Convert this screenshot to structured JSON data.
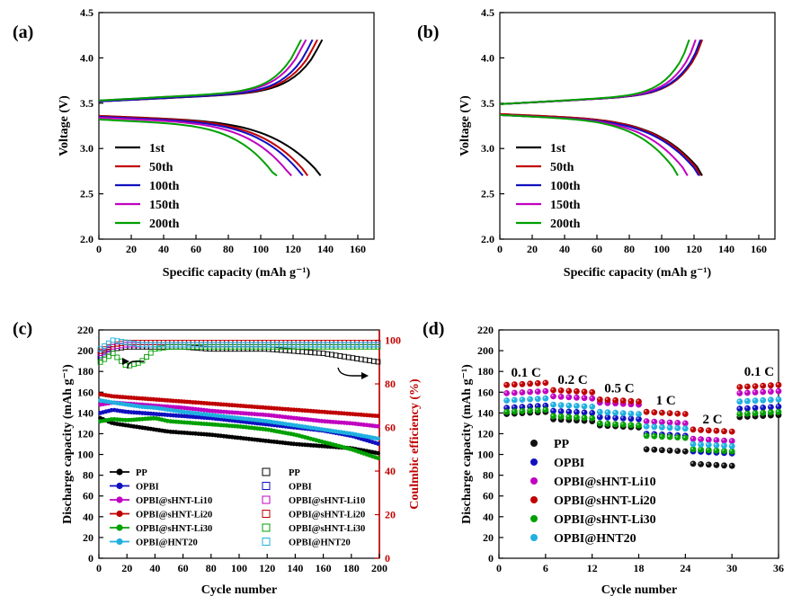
{
  "chart_data": [
    {
      "panel_label": "(a)",
      "type": "line",
      "xlabel": "Specific capacity (mAh g⁻¹)",
      "ylabel": "Voltage (V)",
      "xlim": [
        0,
        170
      ],
      "ylim": [
        2.0,
        4.5
      ],
      "xticks": [
        "0",
        "20",
        "40",
        "60",
        "80",
        "100",
        "120",
        "140",
        "160"
      ],
      "yticks": [
        "2.0",
        "2.5",
        "3.0",
        "3.5",
        "4.0",
        "4.5"
      ],
      "legend_position": "lower-left",
      "series": [
        {
          "name": "1st",
          "color": "#000000",
          "charge_start_voltage": 3.52,
          "charge_capacity": 138,
          "discharge_start_voltage": 3.36,
          "discharge_capacity": 137
        },
        {
          "name": "50th",
          "color": "#c00000",
          "charge_start_voltage": 3.52,
          "charge_capacity": 135,
          "discharge_start_voltage": 3.36,
          "discharge_capacity": 129
        },
        {
          "name": "100th",
          "color": "#1010c0",
          "charge_start_voltage": 3.52,
          "charge_capacity": 132,
          "discharge_start_voltage": 3.35,
          "discharge_capacity": 126
        },
        {
          "name": "150th",
          "color": "#c000c0",
          "charge_start_voltage": 3.53,
          "charge_capacity": 128,
          "discharge_start_voltage": 3.34,
          "discharge_capacity": 119
        },
        {
          "name": "200th",
          "color": "#00a000",
          "charge_start_voltage": 3.53,
          "charge_capacity": 125,
          "discharge_start_voltage": 3.32,
          "discharge_capacity": 110
        }
      ],
      "voltage_cutoffs": [
        2.7,
        4.2
      ]
    },
    {
      "panel_label": "(b)",
      "type": "line",
      "xlabel": "Specific capacity (mAh g⁻¹)",
      "ylabel": "Voltage (V)",
      "xlim": [
        0,
        170
      ],
      "ylim": [
        2.0,
        4.5
      ],
      "xticks": [
        "0",
        "20",
        "40",
        "60",
        "80",
        "100",
        "120",
        "140",
        "160"
      ],
      "yticks": [
        "2.0",
        "2.5",
        "3.0",
        "3.5",
        "4.0",
        "4.5"
      ],
      "legend_position": "lower-left",
      "series": [
        {
          "name": "1st",
          "color": "#000000",
          "charge_start_voltage": 3.49,
          "charge_capacity": 125,
          "discharge_start_voltage": 3.38,
          "discharge_capacity": 125
        },
        {
          "name": "50th",
          "color": "#c00000",
          "charge_start_voltage": 3.49,
          "charge_capacity": 125,
          "discharge_start_voltage": 3.38,
          "discharge_capacity": 124
        },
        {
          "name": "100th",
          "color": "#1010c0",
          "charge_start_voltage": 3.49,
          "charge_capacity": 124,
          "discharge_start_voltage": 3.37,
          "discharge_capacity": 123
        },
        {
          "name": "150th",
          "color": "#c000c0",
          "charge_start_voltage": 3.49,
          "charge_capacity": 121,
          "discharge_start_voltage": 3.37,
          "discharge_capacity": 116
        },
        {
          "name": "200th",
          "color": "#00a000",
          "charge_start_voltage": 3.49,
          "charge_capacity": 117,
          "discharge_start_voltage": 3.37,
          "discharge_capacity": 110
        }
      ],
      "voltage_cutoffs": [
        2.7,
        4.2
      ]
    },
    {
      "panel_label": "(c)",
      "type": "scatter",
      "xlabel": "Cycle number",
      "ylabel": "Discharge capacity (mAh g⁻¹)",
      "ylabel_right": "Coulmbic efficiency (%)",
      "xlim": [
        0,
        200
      ],
      "ylim": [
        0,
        220
      ],
      "ylim_right": [
        0,
        104.76
      ],
      "xticks": [
        "0",
        "20",
        "40",
        "60",
        "80",
        "100",
        "120",
        "140",
        "160",
        "180",
        "200"
      ],
      "yticks": [
        "0",
        "20",
        "40",
        "60",
        "80",
        "100",
        "120",
        "140",
        "160",
        "180",
        "200",
        "220"
      ],
      "yticks_right": [
        "0",
        "20",
        "40",
        "60",
        "80",
        "100"
      ],
      "right_axis_color": "#c00000",
      "x": [
        1,
        10,
        20,
        30,
        40,
        50,
        60,
        80,
        100,
        120,
        140,
        160,
        180,
        200
      ],
      "series": [
        {
          "name": "PP",
          "axis": "left",
          "marker": "filled-circle",
          "color": "#000000",
          "values": [
            135,
            130,
            128,
            126,
            124,
            122,
            121,
            119,
            116,
            113,
            110,
            108,
            106,
            101
          ]
        },
        {
          "name": "OPBI",
          "axis": "left",
          "marker": "filled-circle",
          "color": "#1010c0",
          "values": [
            140,
            143,
            141,
            140,
            139,
            138,
            137,
            135,
            132,
            129,
            126,
            123,
            118,
            110
          ]
        },
        {
          "name": "OPBI@sHNT-Li10",
          "axis": "left",
          "marker": "filled-circle",
          "color": "#c000c0",
          "values": [
            148,
            150,
            149,
            148,
            147,
            146,
            145,
            142,
            140,
            138,
            135,
            132,
            130,
            127
          ]
        },
        {
          "name": "OPBI@sHNT-Li20",
          "axis": "left",
          "marker": "filled-circle",
          "color": "#c00000",
          "values": [
            158,
            156,
            155,
            154,
            153,
            152,
            151,
            149,
            147,
            145,
            143,
            141,
            139,
            137
          ]
        },
        {
          "name": "OPBI@sHNT-Li30",
          "axis": "left",
          "marker": "filled-circle",
          "color": "#00a000",
          "values": [
            132,
            134,
            133,
            134,
            135,
            132,
            131,
            129,
            127,
            124,
            119,
            112,
            105,
            96
          ]
        },
        {
          "name": "OPBI@HNT20",
          "axis": "left",
          "marker": "filled-circle",
          "color": "#1fb0e0",
          "values": [
            152,
            150,
            148,
            146,
            145,
            143,
            141,
            138,
            135,
            132,
            128,
            124,
            120,
            115
          ]
        },
        {
          "name": "PP",
          "axis": "right",
          "marker": "open-square",
          "color": "#000000",
          "values": [
            92,
            96,
            97,
            97,
            97,
            97,
            97,
            96,
            96,
            96,
            95,
            94,
            92,
            90
          ]
        },
        {
          "name": "OPBI",
          "axis": "right",
          "marker": "open-square",
          "color": "#1010c0",
          "values": [
            93,
            97,
            98,
            98,
            98,
            98,
            98,
            98,
            98,
            98,
            98,
            98,
            98,
            98
          ]
        },
        {
          "name": "OPBI@sHNT-Li10",
          "axis": "right",
          "marker": "open-square",
          "color": "#c000c0",
          "values": [
            94,
            97,
            98,
            98,
            98,
            98,
            98,
            98,
            98,
            98,
            98,
            98,
            98,
            98
          ]
        },
        {
          "name": "OPBI@sHNT-Li20",
          "axis": "right",
          "marker": "open-square",
          "color": "#c00000",
          "values": [
            95,
            98,
            99,
            99,
            99,
            99,
            99,
            99,
            99,
            99,
            99,
            99,
            99,
            99
          ]
        },
        {
          "name": "OPBI@sHNT-Li30",
          "axis": "right",
          "marker": "open-square",
          "color": "#00a000",
          "values": [
            90,
            94,
            88,
            90,
            96,
            97,
            97,
            97,
            97,
            97,
            97,
            97,
            97,
            97
          ]
        },
        {
          "name": "OPBI@HNT20",
          "axis": "right",
          "marker": "open-square",
          "color": "#1fb0e0",
          "values": [
            96,
            100,
            99,
            98,
            98,
            98,
            98,
            98,
            98,
            98,
            98,
            98,
            98,
            98
          ]
        }
      ],
      "legend_position": "lower-left and lower-center"
    },
    {
      "panel_label": "(d)",
      "type": "scatter",
      "xlabel": "Cycle number",
      "ylabel": "Discharge capacity (mAh g⁻¹)",
      "xlim": [
        0,
        36
      ],
      "ylim": [
        0,
        220
      ],
      "xticks": [
        "0",
        "6",
        "12",
        "18",
        "24",
        "30",
        "36"
      ],
      "yticks": [
        "0",
        "20",
        "40",
        "60",
        "80",
        "100",
        "120",
        "140",
        "160",
        "180",
        "200",
        "220"
      ],
      "rate_labels": [
        "0.1 C",
        "0.2 C",
        "0.5 C",
        "1 C",
        "2 C",
        "0.1 C"
      ],
      "rate_segments": [
        [
          1,
          6
        ],
        [
          7,
          12
        ],
        [
          13,
          18
        ],
        [
          19,
          24
        ],
        [
          25,
          30
        ],
        [
          31,
          36
        ]
      ],
      "legend_position": "lower-left",
      "series": [
        {
          "name": "PP",
          "color": "#111111",
          "segment_values": [
            140,
            134,
            128,
            105,
            91,
            137
          ]
        },
        {
          "name": "OPBI",
          "color": "#1010c0",
          "segment_values": [
            146,
            142,
            136,
            120,
            103,
            145
          ]
        },
        {
          "name": "OPBI@sHNT-Li10",
          "color": "#c000c0",
          "segment_values": [
            160,
            156,
            150,
            132,
            115,
            160
          ]
        },
        {
          "name": "OPBI@sHNT-Li20",
          "color": "#c00000",
          "segment_values": [
            168,
            162,
            153,
            141,
            124,
            166
          ]
        },
        {
          "name": "OPBI@sHNT-Li30",
          "color": "#00a000",
          "segment_values": [
            142,
            137,
            130,
            118,
            105,
            140
          ]
        },
        {
          "name": "OPBI@HNT20",
          "color": "#1fb0e0",
          "segment_values": [
            153,
            148,
            141,
            127,
            110,
            152
          ]
        }
      ]
    }
  ]
}
